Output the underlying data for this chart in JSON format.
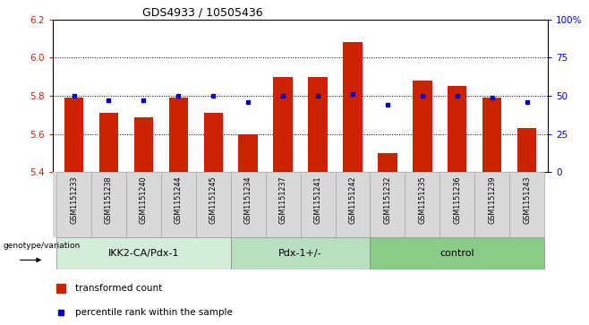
{
  "title": "GDS4933 / 10505436",
  "samples": [
    "GSM1151233",
    "GSM1151238",
    "GSM1151240",
    "GSM1151244",
    "GSM1151245",
    "GSM1151234",
    "GSM1151237",
    "GSM1151241",
    "GSM1151242",
    "GSM1151232",
    "GSM1151235",
    "GSM1151236",
    "GSM1151239",
    "GSM1151243"
  ],
  "red_values": [
    5.79,
    5.71,
    5.69,
    5.79,
    5.71,
    5.6,
    5.9,
    5.9,
    6.08,
    5.5,
    5.88,
    5.85,
    5.79,
    5.63
  ],
  "blue_values": [
    50,
    47,
    47,
    50,
    50,
    46,
    50,
    50,
    51,
    44,
    50,
    50,
    49,
    46
  ],
  "ylim_left": [
    5.4,
    6.2
  ],
  "ylim_right": [
    0,
    100
  ],
  "yticks_left": [
    5.4,
    5.6,
    5.8,
    6.0,
    6.2
  ],
  "yticks_right": [
    0,
    25,
    50,
    75,
    100
  ],
  "groups": [
    {
      "label": "IKK2-CA/Pdx-1",
      "start": 0,
      "end": 5
    },
    {
      "label": "Pdx-1+/-",
      "start": 5,
      "end": 9
    },
    {
      "label": "control",
      "start": 9,
      "end": 14
    }
  ],
  "group_colors": [
    "#d4edda",
    "#b8e0c0",
    "#88cc88"
  ],
  "bar_color": "#cc2200",
  "dot_color": "#0000cc",
  "ylabel_left_color": "#cc2200",
  "ylabel_right_color": "#0000cc",
  "bar_bottom": 5.4,
  "legend_red": "transformed count",
  "legend_blue": "percentile rank within the sample",
  "genotype_label": "genotype/variation",
  "label_bg_color": "#d8d8d8"
}
